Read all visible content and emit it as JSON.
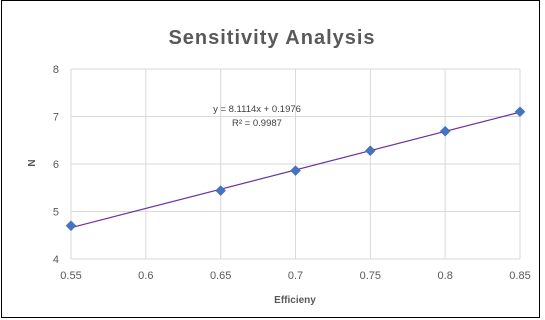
{
  "chart_data": {
    "type": "scatter",
    "title": "Sensitivity Analysis",
    "xlabel": "Efficieny",
    "ylabel": "N",
    "xlim": [
      0.55,
      0.85
    ],
    "ylim": [
      4,
      8
    ],
    "x_ticks": [
      "0.55",
      "0.6",
      "0.65",
      "0.7",
      "0.75",
      "0.8",
      "0.85"
    ],
    "y_ticks": [
      "4",
      "5",
      "6",
      "7",
      "8"
    ],
    "grid": true,
    "legend": "none",
    "series": [
      {
        "x": [
          0.55,
          0.65,
          0.7,
          0.75,
          0.8,
          0.85
        ],
        "y": [
          4.7,
          5.44,
          5.86,
          6.28,
          6.69,
          7.1
        ],
        "marker": "diamond",
        "color": "#4472C4"
      }
    ],
    "trendline": {
      "type": "linear",
      "slope": 8.1114,
      "intercept": 0.1976,
      "color": "#7030A0"
    },
    "annotations": [
      "y = 8.1114x + 0.1976",
      "R² = 0.9987"
    ]
  }
}
